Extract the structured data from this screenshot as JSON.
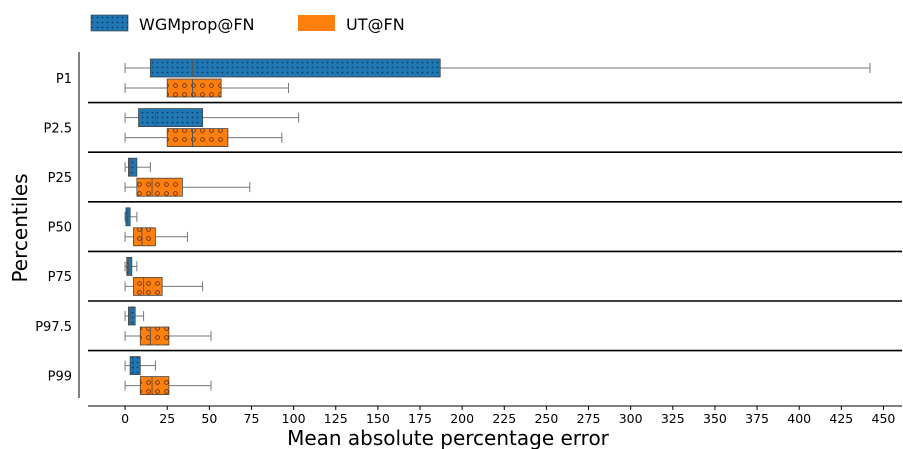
{
  "chart_data": {
    "type": "boxplot",
    "orientation": "horizontal",
    "title": "",
    "xlabel": "Mean absolute percentage error",
    "ylabel": "Percentiles",
    "xlim": [
      -22,
      461
    ],
    "xticks": [
      0,
      25,
      50,
      75,
      100,
      125,
      150,
      175,
      200,
      225,
      250,
      275,
      300,
      325,
      350,
      375,
      400,
      425,
      450
    ],
    "grid": false,
    "legend_position": "top-left",
    "categories": [
      "P1",
      "P2.5",
      "P25",
      "P50",
      "P75",
      "P97.5",
      "P99"
    ],
    "series": [
      {
        "name": "WGMprop@FN",
        "color": "#1f77b4",
        "hatch": "dots",
        "boxes": [
          {
            "category": "P1",
            "whisker_low": 0,
            "q1": 15,
            "median": 40,
            "q3": 187,
            "whisker_high": 442
          },
          {
            "category": "P2.5",
            "whisker_low": 0,
            "q1": 8,
            "median": 18,
            "q3": 46,
            "whisker_high": 103
          },
          {
            "category": "P25",
            "whisker_low": 0,
            "q1": 2,
            "median": 3,
            "q3": 7,
            "whisker_high": 15
          },
          {
            "category": "P50",
            "whisker_low": 0,
            "q1": 0.5,
            "median": 1.5,
            "q3": 3,
            "whisker_high": 7
          },
          {
            "category": "P75",
            "whisker_low": 0,
            "q1": 1,
            "median": 2,
            "q3": 4,
            "whisker_high": 7
          },
          {
            "category": "P97.5",
            "whisker_low": 0,
            "q1": 2,
            "median": 3,
            "q3": 6,
            "whisker_high": 11
          },
          {
            "category": "P99",
            "whisker_low": 0,
            "q1": 3,
            "median": 5,
            "q3": 9,
            "whisker_high": 18
          }
        ]
      },
      {
        "name": "UT@FN",
        "color": "#ff7f0e",
        "hatch": "circles",
        "boxes": [
          {
            "category": "P1",
            "whisker_low": 0,
            "q1": 25,
            "median": 40,
            "q3": 57,
            "whisker_high": 97
          },
          {
            "category": "P2.5",
            "whisker_low": 0,
            "q1": 25,
            "median": 40,
            "q3": 61,
            "whisker_high": 93
          },
          {
            "category": "P25",
            "whisker_low": 0,
            "q1": 7,
            "median": 16,
            "q3": 34,
            "whisker_high": 74
          },
          {
            "category": "P50",
            "whisker_low": 0,
            "q1": 5,
            "median": 10,
            "q3": 18,
            "whisker_high": 37
          },
          {
            "category": "P75",
            "whisker_low": 0,
            "q1": 5,
            "median": 11,
            "q3": 22,
            "whisker_high": 46
          },
          {
            "category": "P97.5",
            "whisker_low": 0,
            "q1": 9,
            "median": 15,
            "q3": 26,
            "whisker_high": 51
          },
          {
            "category": "P99",
            "whisker_low": 0,
            "q1": 9,
            "median": 16,
            "q3": 26,
            "whisker_high": 51
          }
        ]
      }
    ]
  }
}
